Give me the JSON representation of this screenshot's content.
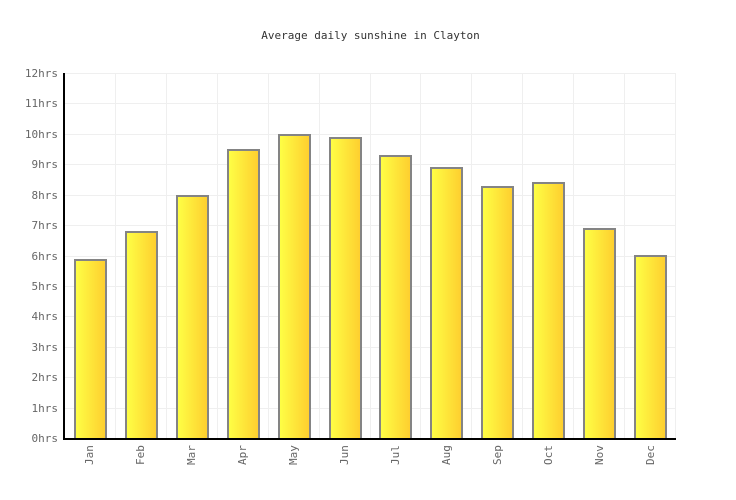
{
  "chart_data": {
    "type": "bar",
    "title": "Average daily sunshine in Clayton",
    "categories": [
      "Jan",
      "Feb",
      "Mar",
      "Apr",
      "May",
      "Jun",
      "Jul",
      "Aug",
      "Sep",
      "Oct",
      "Nov",
      "Dec"
    ],
    "values": [
      5.9,
      6.8,
      8.0,
      9.5,
      10.0,
      9.9,
      9.3,
      8.9,
      8.3,
      8.4,
      6.9,
      6.0
    ],
    "unit": "hrs",
    "ylabel": "",
    "xlabel": "",
    "ylim": [
      0,
      12
    ],
    "ytick_step": 1,
    "ytick_labels": [
      "0hrs",
      "1hrs",
      "2hrs",
      "3hrs",
      "4hrs",
      "5hrs",
      "6hrs",
      "7hrs",
      "8hrs",
      "9hrs",
      "10hrs",
      "11hrs",
      "12hrs"
    ],
    "grid": true,
    "legend": "none",
    "colors": {
      "background": "#ffffff",
      "bar_gradient_left": "#fefe45",
      "bar_gradient_right": "#fecf2f",
      "bar_border": "#848484",
      "gridline": "#efefef",
      "axis": "#000000",
      "tick_label": "#666666",
      "title": "#333333"
    }
  }
}
